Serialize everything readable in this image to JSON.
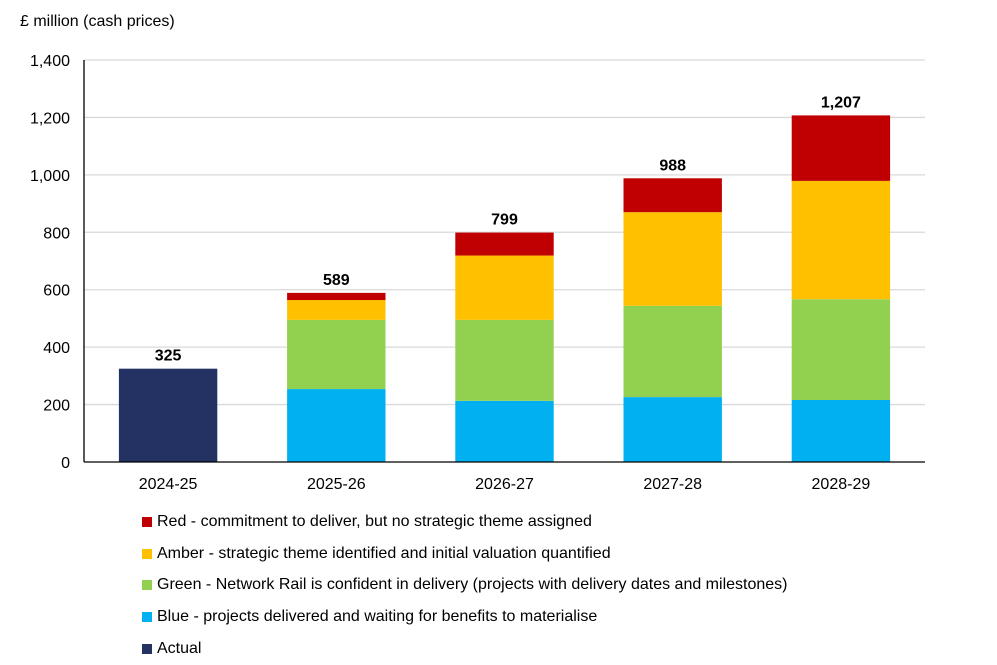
{
  "chart_data": {
    "type": "bar",
    "stacked": true,
    "title": "",
    "ylabel": "£ million (cash prices)",
    "xlabel": "",
    "ylim": [
      0,
      1400
    ],
    "yticks": [
      0,
      200,
      400,
      600,
      800,
      1000,
      1200,
      1400
    ],
    "ytick_labels": [
      "0",
      "200",
      "400",
      "600",
      "800",
      "1,000",
      "1,200",
      "1,400"
    ],
    "grid": true,
    "legend_position": "bottom",
    "categories": [
      "2024-25",
      "2025-26",
      "2026-27",
      "2027-28",
      "2028-29"
    ],
    "series": [
      {
        "key": "actual",
        "name": "Actual",
        "color": "#233163",
        "values": [
          325,
          0,
          0,
          0,
          0
        ]
      },
      {
        "key": "blue",
        "name": "Blue - projects delivered and waiting for benefits to materialise",
        "color": "#00B0F0",
        "values": [
          0,
          254,
          213,
          226,
          216
        ]
      },
      {
        "key": "green",
        "name": "Green - Network Rail is confident in delivery (projects with delivery dates and milestones)",
        "color": "#92D050",
        "values": [
          0,
          241,
          282,
          318,
          351
        ]
      },
      {
        "key": "amber",
        "name": "Amber - strategic theme identified and initial valuation quantified",
        "color": "#FFC000",
        "values": [
          0,
          69,
          224,
          326,
          412
        ]
      },
      {
        "key": "red",
        "name": "Red - commitment to deliver, but no strategic theme assigned",
        "color": "#C00000",
        "values": [
          0,
          25,
          80,
          118,
          228
        ]
      }
    ],
    "totals": [
      325,
      589,
      799,
      988,
      1207
    ],
    "total_labels": [
      "325",
      "589",
      "799",
      "988",
      "1,207"
    ],
    "legend_order": [
      "red",
      "amber",
      "green",
      "blue",
      "actual"
    ]
  }
}
